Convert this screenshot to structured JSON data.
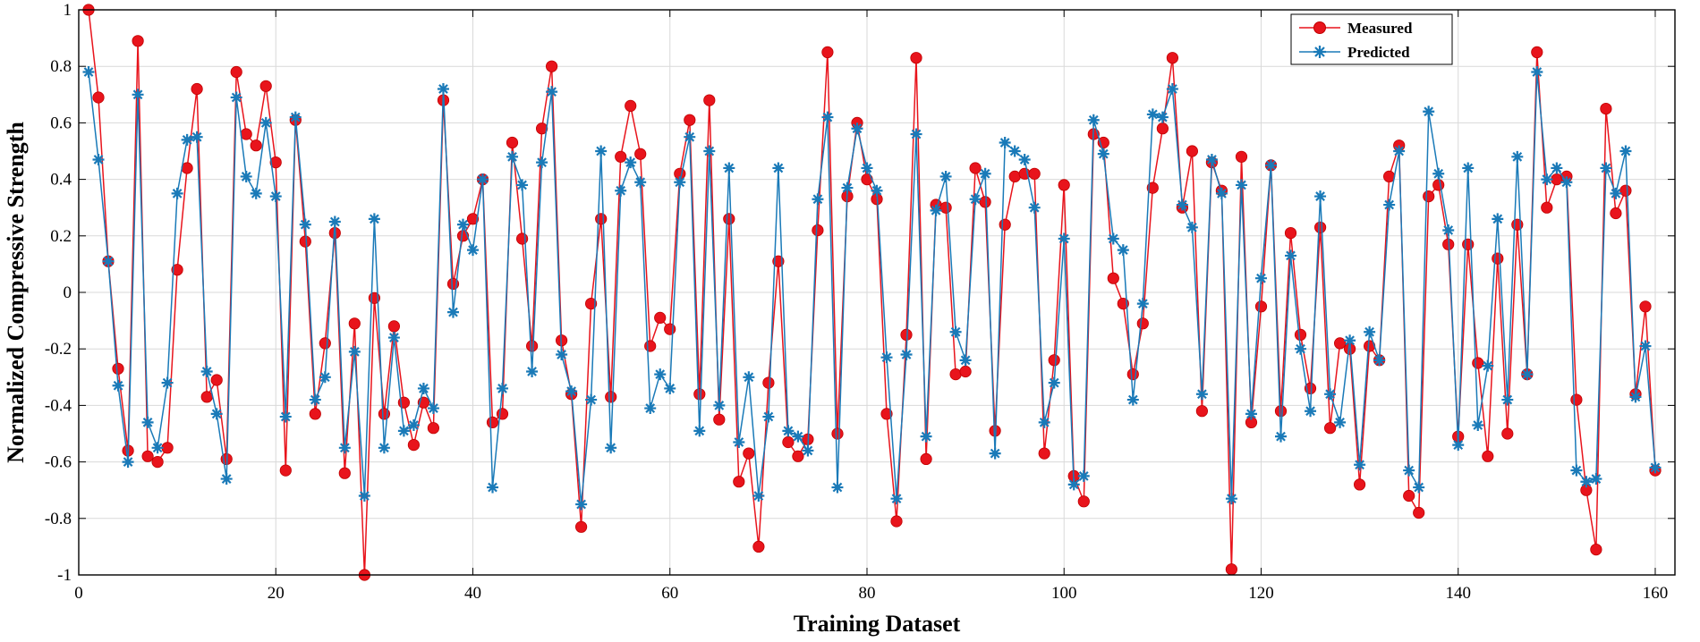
{
  "chart_data": {
    "type": "line",
    "title": "",
    "xlabel": "Training Dataset",
    "ylabel": "Normalized Compressive Strength",
    "xlim": [
      0,
      162
    ],
    "ylim": [
      -1,
      1
    ],
    "xticks": [
      0,
      20,
      40,
      60,
      80,
      100,
      120,
      140,
      160
    ],
    "yticks": [
      -1,
      -0.8,
      -0.6,
      -0.4,
      -0.2,
      0,
      0.2,
      0.4,
      0.6,
      0.8,
      1
    ],
    "xtick_labels": [
      "0",
      "20",
      "40",
      "60",
      "80",
      "100",
      "120",
      "140",
      "160"
    ],
    "ytick_labels": [
      "-1",
      "-0.8",
      "-0.6",
      "-0.4",
      "-0.2",
      "0",
      "0.2",
      "0.4",
      "0.6",
      "0.8",
      "1"
    ],
    "grid": true,
    "legend_position": "top-right",
    "series": [
      {
        "name": "Measured",
        "color": "#e8141c",
        "marker": "circle",
        "values": [
          1.0,
          0.69,
          0.11,
          -0.27,
          -0.56,
          0.89,
          -0.58,
          -0.6,
          -0.55,
          0.08,
          0.44,
          0.72,
          -0.37,
          -0.31,
          -0.59,
          0.78,
          0.56,
          0.52,
          0.73,
          0.46,
          -0.63,
          0.61,
          0.18,
          -0.43,
          -0.18,
          0.21,
          -0.64,
          -0.11,
          -1.0,
          -0.02,
          -0.43,
          -0.12,
          -0.39,
          -0.54,
          -0.39,
          -0.48,
          0.68,
          0.03,
          0.2,
          0.26,
          0.4,
          -0.46,
          -0.43,
          0.53,
          0.19,
          -0.19,
          0.58,
          0.8,
          -0.17,
          -0.36,
          -0.83,
          -0.04,
          0.26,
          -0.37,
          0.48,
          0.66,
          0.49,
          -0.19,
          -0.09,
          -0.13,
          0.42,
          0.61,
          -0.36,
          0.68,
          -0.45,
          0.26,
          -0.67,
          -0.57,
          -0.9,
          -0.32,
          0.11,
          -0.53,
          -0.58,
          -0.52,
          0.22,
          0.85,
          -0.5,
          0.34,
          0.6,
          0.4,
          0.33,
          -0.43,
          -0.81,
          -0.15,
          0.83,
          -0.59,
          0.31,
          0.3,
          -0.29,
          -0.28,
          0.44,
          0.32,
          -0.49,
          0.24,
          0.41,
          0.42,
          0.42,
          -0.57,
          -0.24,
          0.38,
          -0.65,
          -0.74,
          0.56,
          0.53,
          0.05,
          -0.04,
          -0.29,
          -0.11,
          0.37,
          0.58,
          0.83,
          0.3,
          0.5,
          -0.42,
          0.46,
          0.36,
          -0.98,
          0.48,
          -0.46,
          -0.05,
          0.45,
          -0.42,
          0.21,
          -0.15,
          -0.34,
          0.23,
          -0.48,
          -0.18,
          -0.2,
          -0.68,
          -0.19,
          -0.24,
          0.41,
          0.52,
          -0.72,
          -0.78,
          0.34,
          0.38,
          0.17,
          -0.51,
          0.17,
          -0.25,
          -0.58,
          0.12,
          -0.5,
          0.24,
          -0.29,
          0.85,
          0.3,
          0.4,
          0.41,
          -0.38,
          -0.7,
          -0.91,
          0.65,
          0.28,
          0.36,
          -0.36,
          -0.05,
          -0.63
        ]
      },
      {
        "name": "Predicted",
        "color": "#1a7ab8",
        "marker": "star",
        "values": [
          0.78,
          0.47,
          0.11,
          -0.33,
          -0.6,
          0.7,
          -0.46,
          -0.55,
          -0.32,
          0.35,
          0.54,
          0.55,
          -0.28,
          -0.43,
          -0.66,
          0.69,
          0.41,
          0.35,
          0.6,
          0.34,
          -0.44,
          0.62,
          0.24,
          -0.38,
          -0.3,
          0.25,
          -0.55,
          -0.21,
          -0.72,
          0.26,
          -0.55,
          -0.16,
          -0.49,
          -0.47,
          -0.34,
          -0.41,
          0.72,
          -0.07,
          0.24,
          0.15,
          0.4,
          -0.69,
          -0.34,
          0.48,
          0.38,
          -0.28,
          0.46,
          0.71,
          -0.22,
          -0.35,
          -0.75,
          -0.38,
          0.5,
          -0.55,
          0.36,
          0.46,
          0.39,
          -0.41,
          -0.29,
          -0.34,
          0.39,
          0.55,
          -0.49,
          0.5,
          -0.4,
          0.44,
          -0.53,
          -0.3,
          -0.72,
          -0.44,
          0.44,
          -0.49,
          -0.51,
          -0.56,
          0.33,
          0.62,
          -0.69,
          0.37,
          0.58,
          0.44,
          0.36,
          -0.23,
          -0.73,
          -0.22,
          0.56,
          -0.51,
          0.29,
          0.41,
          -0.14,
          -0.24,
          0.33,
          0.42,
          -0.57,
          0.53,
          0.5,
          0.47,
          0.3,
          -0.46,
          -0.32,
          0.19,
          -0.68,
          -0.65,
          0.61,
          0.49,
          0.19,
          0.15,
          -0.38,
          -0.04,
          0.63,
          0.62,
          0.72,
          0.31,
          0.23,
          -0.36,
          0.47,
          0.35,
          -0.73,
          0.38,
          -0.43,
          0.05,
          0.45,
          -0.51,
          0.13,
          -0.2,
          -0.42,
          0.34,
          -0.36,
          -0.46,
          -0.17,
          -0.61,
          -0.14,
          -0.24,
          0.31,
          0.5,
          -0.63,
          -0.69,
          0.64,
          0.42,
          0.22,
          -0.54,
          0.44,
          -0.47,
          -0.26,
          0.26,
          -0.38,
          0.48,
          -0.29,
          0.78,
          0.4,
          0.44,
          0.39,
          -0.63,
          -0.67,
          -0.66,
          0.44,
          0.35,
          0.5,
          -0.37,
          -0.19,
          -0.62
        ]
      }
    ]
  }
}
